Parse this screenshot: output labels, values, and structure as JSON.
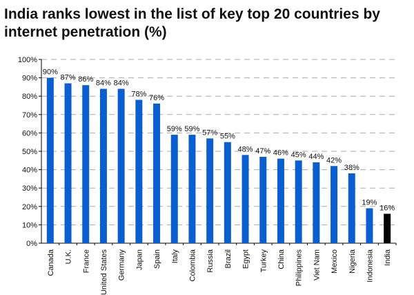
{
  "chart_data": {
    "type": "bar",
    "title": "India ranks lowest in the list of key top 20 countries by internet penetration (%)",
    "categories": [
      "Canada",
      "U.K.",
      "France",
      "United States",
      "Germany",
      "Japan",
      "Spain",
      "Italy",
      "Colombia",
      "Russia",
      "Brazil",
      "Egypt",
      "Turkey",
      "China",
      "Philippines",
      "Viet Nam",
      "Mexico",
      "Nigeria",
      "Indonesia",
      "India"
    ],
    "values": [
      90,
      87,
      86,
      84,
      84,
      78,
      76,
      59,
      59,
      57,
      55,
      48,
      47,
      46,
      45,
      44,
      42,
      38,
      19,
      16
    ],
    "data_labels": [
      "90%",
      "87%",
      "86%",
      "84%",
      "84%",
      "78%",
      "76%",
      "59%",
      "59%",
      "57%",
      "55%",
      "48%",
      "47%",
      "46%",
      "45%",
      "44%",
      "42%",
      "38%",
      "19%",
      "16%"
    ],
    "xlabel": "",
    "ylabel": "",
    "ylim": [
      0,
      100
    ],
    "yticks": [
      "0%",
      "10%",
      "20%",
      "30%",
      "40%",
      "50%",
      "60%",
      "70%",
      "80%",
      "90%",
      "100%"
    ],
    "grid": true,
    "colors": {
      "default": "#0a5fd0",
      "highlight": "#000000",
      "highlight_category": "India"
    }
  }
}
